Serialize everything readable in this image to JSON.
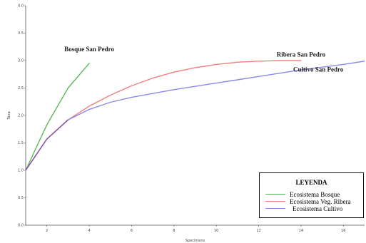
{
  "chart_data": {
    "type": "line",
    "xlabel": "Specimens",
    "ylabel": "Taxa",
    "xlim": [
      1,
      17
    ],
    "ylim": [
      0,
      4.0
    ],
    "x_ticks": [
      2,
      4,
      6,
      8,
      10,
      12,
      14,
      16
    ],
    "x_tick_labels": [
      "2",
      "4",
      "6",
      "8",
      "10",
      "12",
      "14",
      "16"
    ],
    "y_ticks": [
      0,
      0.5,
      1.0,
      1.5,
      2.0,
      2.5,
      3.0,
      3.5,
      4.0
    ],
    "y_tick_labels": [
      "0.0",
      "0.5",
      "1.0",
      "1.5",
      "2.0",
      "2.5",
      "3.0",
      "3.5",
      "4.0"
    ],
    "grid": false,
    "legend_position": "bottom-right",
    "series": [
      {
        "name": "Ecosistema Bosque",
        "color": "#5cb85c",
        "x": [
          1,
          2,
          3,
          4
        ],
        "y": [
          1.0,
          1.83,
          2.5,
          2.95
        ]
      },
      {
        "name": "Ecosistema Veg. Ribera",
        "color": "#f08080",
        "x": [
          1,
          2,
          3,
          4,
          5,
          6,
          7,
          8,
          9,
          10,
          11,
          12,
          13,
          14
        ],
        "y": [
          1.0,
          1.57,
          1.92,
          2.17,
          2.37,
          2.54,
          2.68,
          2.79,
          2.87,
          2.93,
          2.97,
          2.99,
          3.0,
          3.0
        ]
      },
      {
        "name": "Ecosistema Cultivo",
        "color": "#8a8ae6",
        "x": [
          1,
          2,
          3,
          4,
          5,
          6,
          7,
          8,
          9,
          10,
          11,
          12,
          13,
          14,
          15,
          16,
          17
        ],
        "y": [
          1.0,
          1.57,
          1.92,
          2.11,
          2.24,
          2.33,
          2.4,
          2.47,
          2.53,
          2.59,
          2.65,
          2.71,
          2.77,
          2.83,
          2.88,
          2.93,
          2.99
        ]
      }
    ],
    "annotations": [
      {
        "text": "Bosque San Pedro",
        "x": 4.0,
        "y": 3.05
      },
      {
        "text": "Ribera San Pedro",
        "x": 14.0,
        "y": 3.03
      },
      {
        "text": "Cultivo San Pedro",
        "x": 16.0,
        "y": 2.8
      }
    ]
  },
  "legend": {
    "title": "LEYENDA",
    "items": [
      {
        "label": "Ecosistema Bosque",
        "color": "#5cb85c"
      },
      {
        "label": "Ecosistema Veg. Ribera",
        "color": "#f08080"
      },
      {
        "label": "Ecosistema Cultivo",
        "color": "#8a8ae6"
      }
    ]
  }
}
